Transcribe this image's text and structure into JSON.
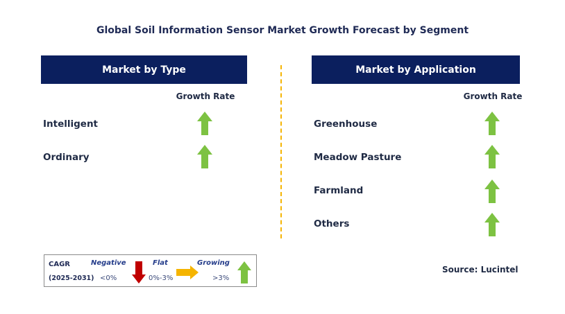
{
  "title": "Global Soil Information Sensor Market Growth Forecast by Segment",
  "left_panel": {
    "header": "Market by Type",
    "growth_header": "Growth Rate",
    "rows": [
      {
        "label": "Intelligent",
        "trend": "growing"
      },
      {
        "label": "Ordinary",
        "trend": "growing"
      }
    ]
  },
  "right_panel": {
    "header": "Market by Application",
    "growth_header": "Growth Rate",
    "rows": [
      {
        "label": "Greenhouse",
        "trend": "growing"
      },
      {
        "label": "Meadow Pasture",
        "trend": "growing"
      },
      {
        "label": "Farmland",
        "trend": "growing"
      },
      {
        "label": "Others",
        "trend": "growing"
      }
    ]
  },
  "legend": {
    "cagr_label": "CAGR",
    "period": "(2025-2031)",
    "negative_label": "Negative",
    "negative_range": "<0%",
    "flat_label": "Flat",
    "flat_range": "0%-3%",
    "growing_label": "Growing",
    "growing_range": ">3%"
  },
  "source": "Source: Lucintel",
  "colors": {
    "header_bg": "#0b1f5e",
    "growing": "#7dc242",
    "negative": "#c00000",
    "flat": "#f5b400",
    "divider": "#f5b400"
  },
  "icons": {
    "growing": "green-up-arrow-icon",
    "negative": "red-down-arrow-icon",
    "flat": "yellow-right-arrow-icon"
  }
}
